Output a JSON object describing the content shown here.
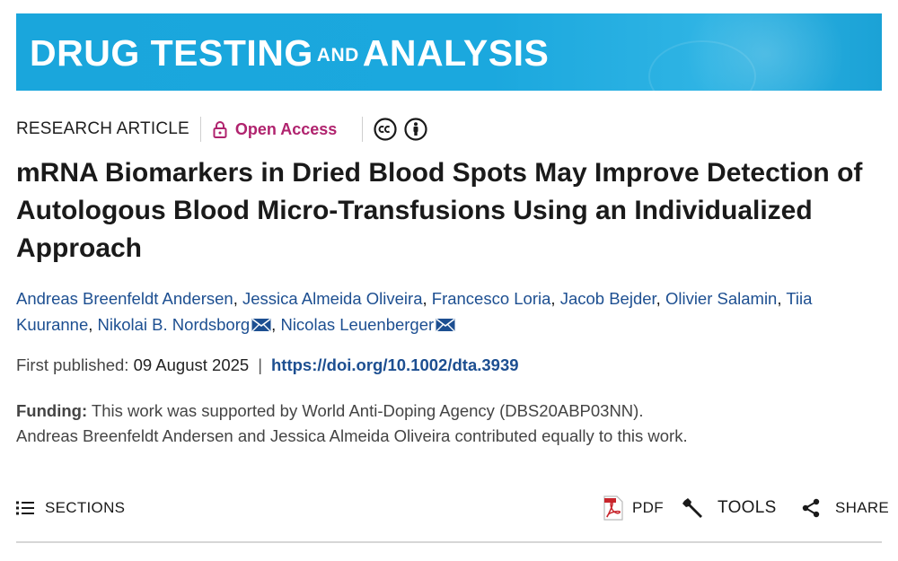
{
  "banner": {
    "journal_part1": "DRUG TESTING",
    "journal_and": "AND",
    "journal_part2": "ANALYSIS",
    "color": "#1aa6dc"
  },
  "meta": {
    "article_type": "RESEARCH ARTICLE",
    "access_label": "Open Access",
    "access_color": "#b0236e",
    "icons": [
      "lock-icon",
      "cc-icon",
      "by-attribution-icon"
    ]
  },
  "title": "mRNA Biomarkers in Dried Blood Spots May Improve Detection of Autologous Blood Micro-Transfusions Using an Individualized Approach",
  "authors": [
    {
      "name": "Andreas Breenfeldt Andersen",
      "corresponding": false
    },
    {
      "name": "Jessica Almeida Oliveira",
      "corresponding": false
    },
    {
      "name": "Francesco Loria",
      "corresponding": false
    },
    {
      "name": "Jacob Bejder",
      "corresponding": false
    },
    {
      "name": "Olivier Salamin",
      "corresponding": false
    },
    {
      "name": "Tiia Kuuranne",
      "corresponding": false
    },
    {
      "name": "Nikolai B. Nordsborg",
      "corresponding": true
    },
    {
      "name": "Nicolas Leuenberger",
      "corresponding": true
    }
  ],
  "published": {
    "label": "First published:",
    "date": "09 August 2025",
    "separator": "|",
    "doi": "https://doi.org/10.1002/dta.3939"
  },
  "funding": {
    "label": "Funding:",
    "text": "This work was supported by World Anti-Doping Agency (DBS20ABP03NN).",
    "note": "Andreas Breenfeldt Andersen and Jessica Almeida Oliveira contributed equally to this work."
  },
  "toolbar": {
    "sections_label": "SECTIONS",
    "pdf_label": "PDF",
    "tools_label": "TOOLS",
    "share_label": "SHARE"
  },
  "colors": {
    "link": "#1d4f91",
    "pdf_red": "#c8252c"
  }
}
